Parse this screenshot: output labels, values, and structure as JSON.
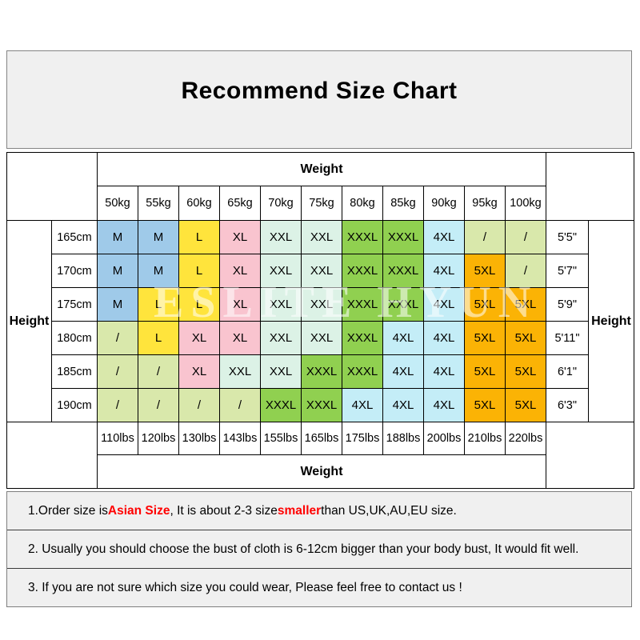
{
  "page": {
    "watermark": "ESLITE HYUN"
  },
  "colors": {
    "title_background": "#F0F0F0",
    "notes_background": "#F0F0F0",
    "highlight_red": "#FF0000",
    "sizes": {
      "M": "#9FCAE9",
      "L": "#FFE43C",
      "XL": "#F9C4CF",
      "XXL": "#DCF2E6",
      "XXXL": "#90D050",
      "4XL": "#C4EDF7",
      "5XL": "#FBB305",
      "/": "#D9E8AB"
    }
  },
  "chart_data": {
    "type": "table",
    "title": "Recommend Size Chart",
    "top_axis_label": "Weight",
    "bottom_axis_label": "Weight",
    "left_axis_label": "Height",
    "right_axis_label": "Height",
    "weight_kg_columns": [
      "50kg",
      "55kg",
      "60kg",
      "65kg",
      "70kg",
      "75kg",
      "80kg",
      "85kg",
      "90kg",
      "95kg",
      "100kg"
    ],
    "weight_lbs_columns": [
      "110lbs",
      "120lbs",
      "130lbs",
      "143lbs",
      "155lbs",
      "165lbs",
      "175lbs",
      "188lbs",
      "200lbs",
      "210lbs",
      "220lbs"
    ],
    "height_cm_rows": [
      "165cm",
      "170cm",
      "175cm",
      "180cm",
      "185cm",
      "190cm"
    ],
    "height_ft_rows": [
      "5'5\"",
      "5'7\"",
      "5'9\"",
      "5'11\"",
      "6'1\"",
      "6'3\""
    ],
    "size_matrix": [
      [
        "M",
        "M",
        "L",
        "XL",
        "XXL",
        "XXL",
        "XXXL",
        "XXXL",
        "4XL",
        "/",
        "/"
      ],
      [
        "M",
        "M",
        "L",
        "XL",
        "XXL",
        "XXL",
        "XXXL",
        "XXXL",
        "4XL",
        "5XL",
        "/"
      ],
      [
        "M",
        "L",
        "L",
        "XL",
        "XXL",
        "XXL",
        "XXXL",
        "XXXL",
        "4XL",
        "5XL",
        "5XL"
      ],
      [
        "/",
        "L",
        "XL",
        "XL",
        "XXL",
        "XXL",
        "XXXL",
        "4XL",
        "4XL",
        "5XL",
        "5XL"
      ],
      [
        "/",
        "/",
        "XL",
        "XXL",
        "XXL",
        "XXXL",
        "XXXL",
        "4XL",
        "4XL",
        "5XL",
        "5XL"
      ],
      [
        "/",
        "/",
        "/",
        "/",
        "XXXL",
        "XXXL",
        "4XL",
        "4XL",
        "4XL",
        "5XL",
        "5XL"
      ]
    ]
  },
  "notes": [
    {
      "segments": [
        {
          "text": "1.Order size is ",
          "red": false
        },
        {
          "text": "Asian Size",
          "red": true
        },
        {
          "text": ", It is about 2-3 size ",
          "red": false
        },
        {
          "text": "smaller",
          "red": true
        },
        {
          "text": " than US,UK,AU,EU size.",
          "red": false
        }
      ]
    },
    {
      "segments": [
        {
          "text": "2. Usually you should choose the bust of cloth is 6-12cm bigger than your body bust, It would fit well.",
          "red": false
        }
      ]
    },
    {
      "segments": [
        {
          "text": "3. If you are not sure which size you could wear, Please feel free to contact us !",
          "red": false
        }
      ]
    }
  ]
}
